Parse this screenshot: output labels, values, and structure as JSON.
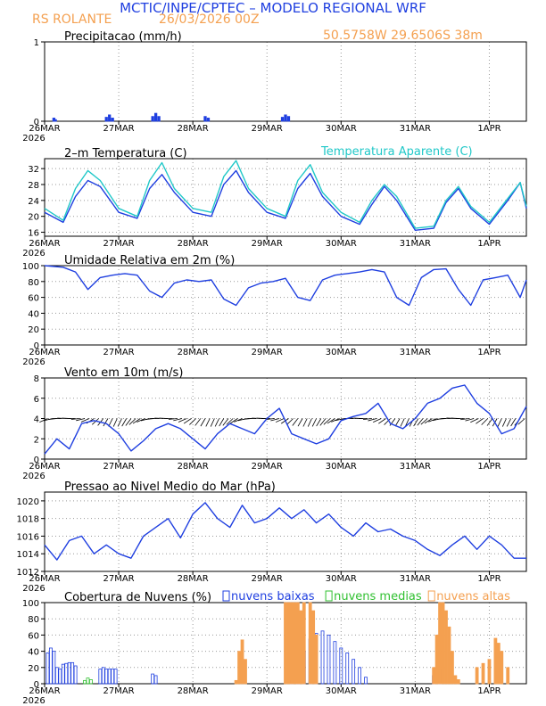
{
  "header": {
    "title": "MCTIC/INPE/CPTEC – MODELO REGIONAL WRF",
    "location": "RS ROLANTE",
    "date": "26/03/2026 00Z",
    "coords": "50.5758W 29.6506S 38m"
  },
  "colors": {
    "blue": "#1f3fe0",
    "cyan": "#20c8c8",
    "orange": "#f4a050",
    "green": "#30c030",
    "black": "#000000"
  },
  "chart_data": {
    "type": "line",
    "x_labels": [
      "26MAR",
      "27MAR",
      "28MAR",
      "29MAR",
      "30MAR",
      "31MAR",
      "1APR"
    ],
    "x_year_label": "2026",
    "x_range_hours": [
      0,
      156
    ],
    "panels": [
      {
        "id": "precip",
        "type": "bar",
        "title": "Precipitacao (mm/h)",
        "ylim": [
          0,
          1
        ],
        "yticks": [
          0,
          1
        ],
        "series": [
          {
            "name": "precip",
            "color": "blue",
            "x": [
              3,
              3.5,
              20,
              21,
              22,
              35,
              36,
              37,
              52,
              53,
              77,
              78,
              79
            ],
            "values": [
              0.04,
              0.02,
              0.05,
              0.08,
              0.04,
              0.06,
              0.1,
              0.06,
              0.06,
              0.04,
              0.05,
              0.08,
              0.06
            ]
          }
        ]
      },
      {
        "id": "temp",
        "type": "line",
        "title": "2–m Temperatura (C)",
        "ylim": [
          15,
          34.5
        ],
        "yticks": [
          16,
          20,
          24,
          28,
          32
        ],
        "series": [
          {
            "name": "Temperatura (C)",
            "color": "blue",
            "x": [
              0,
              6,
              10,
              14,
              18,
              24,
              30,
              34,
              38,
              42,
              48,
              54,
              58,
              62,
              66,
              72,
              78,
              82,
              86,
              90,
              96,
              102,
              106,
              110,
              114,
              120,
              126,
              130,
              134,
              138,
              144,
              150,
              154,
              156
            ],
            "values": [
              21,
              18.5,
              25,
              29,
              27.5,
              21,
              19.5,
              27,
              30.5,
              26,
              21,
              20,
              28,
              31.5,
              26,
              21,
              19.5,
              27,
              30.8,
              25,
              20,
              18,
              23,
              27.5,
              24,
              16.5,
              17,
              23.5,
              27,
              22,
              18,
              24,
              28.5,
              22
            ]
          },
          {
            "name": "Temperatura Aparente (C)",
            "color": "cyan",
            "x": [
              0,
              6,
              10,
              14,
              18,
              24,
              30,
              34,
              38,
              42,
              48,
              54,
              58,
              62,
              66,
              72,
              78,
              82,
              86,
              90,
              96,
              102,
              106,
              110,
              114,
              120,
              126,
              130,
              134,
              138,
              144,
              150,
              154,
              156
            ],
            "values": [
              22,
              19,
              27,
              31.5,
              29,
              22,
              20,
              29,
              33.5,
              27,
              22,
              21,
              30,
              34,
              27,
              22,
              20,
              29,
              33,
              26,
              21,
              18.5,
              24,
              28,
              25,
              17,
              17.5,
              24,
              27.5,
              22.5,
              18.5,
              24.5,
              28.5,
              22.5
            ]
          }
        ],
        "legend_label": "Temperatura Aparente (C)"
      },
      {
        "id": "rh",
        "type": "line",
        "title": "Umidade Relativa em 2m (%)",
        "ylim": [
          0,
          100
        ],
        "yticks": [
          0,
          20,
          40,
          60,
          80,
          100
        ],
        "series": [
          {
            "name": "RH",
            "color": "blue",
            "x": [
              0,
              6,
              10,
              14,
              18,
              22,
              26,
              30,
              34,
              38,
              42,
              46,
              50,
              54,
              58,
              62,
              66,
              70,
              74,
              78,
              82,
              86,
              90,
              94,
              98,
              102,
              106,
              110,
              114,
              118,
              122,
              126,
              130,
              134,
              138,
              142,
              146,
              150,
              154,
              156
            ],
            "values": [
              100,
              98,
              92,
              70,
              85,
              88,
              90,
              88,
              68,
              60,
              78,
              82,
              80,
              82,
              58,
              50,
              72,
              78,
              80,
              84,
              60,
              56,
              82,
              88,
              90,
              92,
              95,
              92,
              60,
              50,
              85,
              95,
              96,
              70,
              50,
              82,
              85,
              88,
              60,
              82
            ]
          }
        ]
      },
      {
        "id": "wind",
        "type": "line",
        "title": "Vento em 10m (m/s)",
        "ylim": [
          0,
          8
        ],
        "yticks": [
          0,
          2,
          4,
          6,
          8
        ],
        "barb_axis_value": 4,
        "series": [
          {
            "name": "wind speed",
            "color": "blue",
            "x": [
              0,
              4,
              8,
              12,
              16,
              20,
              24,
              28,
              32,
              36,
              40,
              44,
              48,
              52,
              56,
              60,
              64,
              68,
              72,
              76,
              80,
              84,
              88,
              92,
              96,
              100,
              104,
              108,
              112,
              116,
              120,
              124,
              128,
              132,
              136,
              140,
              144,
              148,
              152,
              156
            ],
            "values": [
              0.5,
              2,
              1,
              3.5,
              3.8,
              3.5,
              2.5,
              0.8,
              1.8,
              3,
              3.5,
              3,
              2,
              1,
              2.5,
              3.5,
              3,
              2.5,
              4,
              5,
              2.5,
              2,
              1.5,
              2,
              3.8,
              4.2,
              4.5,
              5.5,
              3.5,
              3,
              4,
              5.5,
              6,
              7,
              7.3,
              5.5,
              4.5,
              2.5,
              3,
              5.2
            ]
          }
        ]
      },
      {
        "id": "pres",
        "type": "line",
        "title": "Pressao ao Nivel Medio do Mar (hPa)",
        "ylim": [
          1012,
          1021
        ],
        "yticks": [
          1012,
          1014,
          1016,
          1018,
          1020
        ],
        "series": [
          {
            "name": "pressure",
            "color": "blue",
            "x": [
              0,
              4,
              8,
              12,
              16,
              20,
              24,
              28,
              32,
              36,
              40,
              44,
              48,
              52,
              56,
              60,
              64,
              68,
              72,
              76,
              80,
              84,
              88,
              92,
              96,
              100,
              104,
              108,
              112,
              116,
              120,
              124,
              128,
              132,
              136,
              140,
              144,
              148,
              152,
              156
            ],
            "values": [
              1015,
              1013.3,
              1015.5,
              1016,
              1014,
              1015,
              1014,
              1013.5,
              1016,
              1017,
              1018,
              1015.8,
              1018.5,
              1019.8,
              1018,
              1017,
              1019.5,
              1017.5,
              1018,
              1019.2,
              1018,
              1019,
              1017.5,
              1018.5,
              1017,
              1016,
              1017.5,
              1016.5,
              1016.8,
              1016,
              1015.5,
              1014.5,
              1013.8,
              1015,
              1016,
              1014.5,
              1016,
              1015,
              1013.5,
              1013.5
            ]
          }
        ]
      },
      {
        "id": "cloud",
        "type": "bar",
        "title": "Cobertura de Nuvens (%)",
        "ylim": [
          0,
          100
        ],
        "yticks": [
          0,
          20,
          40,
          60,
          80,
          100
        ],
        "legend": [
          {
            "label": "nuvens baixas",
            "color": "blue"
          },
          {
            "label": "nuvens medias",
            "color": "green"
          },
          {
            "label": "nuvens altas",
            "color": "orange"
          }
        ],
        "series": [
          {
            "name": "nuvens baixas",
            "color": "blue",
            "x": [
              1,
              2,
              3,
              4,
              5,
              6,
              7,
              8,
              9,
              10,
              18,
              19,
              20,
              21,
              22,
              23,
              35,
              36,
              80,
              82,
              84,
              86,
              88,
              90,
              92,
              94,
              96,
              98,
              100,
              102,
              104,
              126,
              128
            ],
            "values": [
              38,
              44,
              40,
              20,
              18,
              24,
              25,
              26,
              26,
              22,
              18,
              20,
              18,
              18,
              18,
              18,
              12,
              10,
              4,
              25,
              40,
              55,
              62,
              65,
              60,
              52,
              44,
              38,
              30,
              20,
              8,
              10,
              18
            ]
          },
          {
            "name": "nuvens medias",
            "color": "green",
            "x": [
              13,
              14,
              15
            ],
            "values": [
              4,
              7,
              5
            ]
          },
          {
            "name": "nuvens altas",
            "color": "orange",
            "x": [
              62,
              63,
              64,
              65,
              78,
              79,
              80,
              81,
              82,
              83,
              84,
              86,
              87,
              88,
              126,
              127,
              128,
              129,
              130,
              131,
              132,
              133,
              134,
              140,
              142,
              144,
              146,
              147,
              148,
              150
            ],
            "values": [
              4,
              40,
              54,
              30,
              100,
              100,
              100,
              100,
              100,
              90,
              100,
              100,
              90,
              60,
              20,
              60,
              100,
              100,
              90,
              70,
              40,
              10,
              5,
              20,
              25,
              30,
              56,
              50,
              40,
              20
            ]
          }
        ]
      }
    ]
  }
}
